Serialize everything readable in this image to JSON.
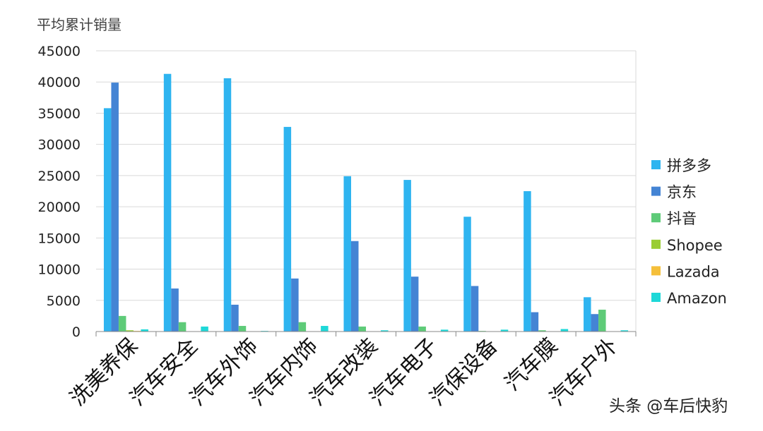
{
  "chart_data": {
    "type": "bar",
    "title": "",
    "ylabel": "平均累计销量",
    "xlabel": "",
    "ylim": [
      0,
      45000
    ],
    "yticks": [
      0,
      5000,
      10000,
      15000,
      20000,
      25000,
      30000,
      35000,
      40000,
      45000
    ],
    "grid": true,
    "legend_position": "right",
    "categories": [
      "洗美养保",
      "汽车安全",
      "汽车外饰",
      "汽车内饰",
      "汽车改装",
      "汽车电子",
      "汽保设备",
      "汽车膜",
      "汽车户外"
    ],
    "series": [
      {
        "name": "拼多多",
        "color": "#2eb4f0",
        "values": [
          35800,
          41300,
          40600,
          32800,
          24900,
          24300,
          18400,
          22500,
          5500
        ]
      },
      {
        "name": "京东",
        "color": "#4484d4",
        "values": [
          39900,
          6900,
          4300,
          8500,
          14500,
          8800,
          7300,
          3100,
          2800
        ]
      },
      {
        "name": "抖音",
        "color": "#5ecb78",
        "values": [
          2500,
          1500,
          900,
          1500,
          800,
          800,
          100,
          200,
          3500
        ]
      },
      {
        "name": "Shopee",
        "color": "#9acd32",
        "values": [
          200,
          0,
          0,
          0,
          0,
          0,
          50,
          0,
          0
        ]
      },
      {
        "name": "Lazada",
        "color": "#f5bf3a",
        "values": [
          100,
          0,
          0,
          0,
          0,
          0,
          0,
          0,
          0
        ]
      },
      {
        "name": "Amazon",
        "color": "#1ed8d8",
        "values": [
          350,
          800,
          100,
          900,
          200,
          300,
          300,
          400,
          200
        ]
      }
    ]
  },
  "footer": {
    "text": "头条 @车后快豹"
  }
}
